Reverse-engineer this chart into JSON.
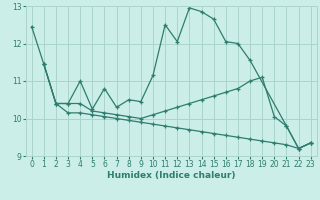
{
  "xlabel": "Humidex (Indice chaleur)",
  "bg_color": "#cceee8",
  "line_color": "#2e7d6e",
  "grid_color": "#aad4cc",
  "xlim": [
    -0.5,
    23.5
  ],
  "ylim": [
    9.0,
    13.0
  ],
  "yticks": [
    9,
    10,
    11,
    12,
    13
  ],
  "xticks": [
    0,
    1,
    2,
    3,
    4,
    5,
    6,
    7,
    8,
    9,
    10,
    11,
    12,
    13,
    14,
    15,
    16,
    17,
    18,
    19,
    20,
    21,
    22,
    23
  ],
  "lines": [
    {
      "x": [
        0,
        1,
        2,
        3,
        4,
        5,
        6,
        7,
        8,
        9,
        10,
        11,
        12,
        13,
        14,
        15,
        16,
        17,
        18,
        21,
        22,
        23
      ],
      "y": [
        12.45,
        11.45,
        10.4,
        10.4,
        11.0,
        10.25,
        10.8,
        10.3,
        10.5,
        10.45,
        11.15,
        12.5,
        12.05,
        12.95,
        12.85,
        12.65,
        12.05,
        12.0,
        11.55,
        9.8,
        9.2,
        9.35
      ]
    },
    {
      "x": [
        1,
        2,
        3,
        4,
        5,
        6,
        7,
        8,
        9,
        10,
        11,
        12,
        13,
        14,
        15,
        16,
        17,
        18,
        19,
        20,
        21,
        22,
        23
      ],
      "y": [
        11.45,
        10.4,
        10.4,
        10.4,
        10.2,
        10.15,
        10.1,
        10.05,
        10.0,
        10.1,
        10.2,
        10.3,
        10.4,
        10.5,
        10.6,
        10.7,
        10.8,
        11.0,
        11.1,
        10.05,
        9.8,
        9.2,
        9.35
      ]
    },
    {
      "x": [
        1,
        2,
        3,
        4,
        5,
        6,
        7,
        8,
        9,
        10,
        11,
        12,
        13,
        14,
        15,
        16,
        17,
        18,
        19,
        20,
        21,
        22,
        23
      ],
      "y": [
        11.45,
        10.4,
        10.15,
        10.15,
        10.1,
        10.05,
        10.0,
        9.95,
        9.9,
        9.85,
        9.8,
        9.75,
        9.7,
        9.65,
        9.6,
        9.55,
        9.5,
        9.45,
        9.4,
        9.35,
        9.3,
        9.2,
        9.35
      ]
    }
  ]
}
